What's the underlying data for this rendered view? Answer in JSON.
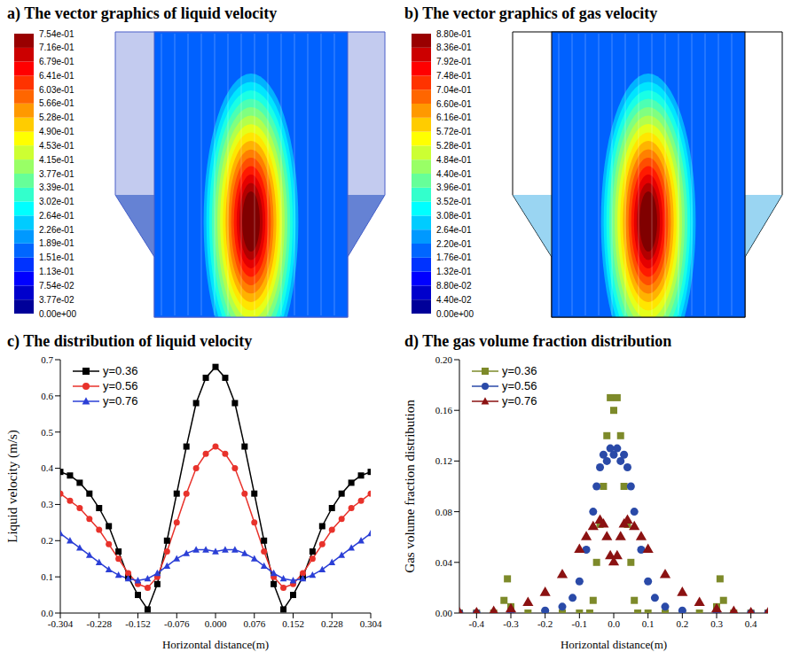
{
  "chart_data": [
    {
      "type": "vector_field",
      "title": "a) The vector graphics of liquid velocity",
      "colorbar": {
        "range": [
          0,
          0.754
        ],
        "ticks": [
          {
            "value": 0,
            "label": "0.00e+00"
          },
          {
            "value": 0.0377,
            "label": "3.77e-02"
          },
          {
            "value": 0.0754,
            "label": "7.54e-02"
          },
          {
            "value": 0.113,
            "label": "1.13e-01"
          },
          {
            "value": 0.151,
            "label": "1.51e-01"
          },
          {
            "value": 0.189,
            "label": "1.89e-01"
          },
          {
            "value": 0.226,
            "label": "2.26e-01"
          },
          {
            "value": 0.264,
            "label": "2.64e-01"
          },
          {
            "value": 0.302,
            "label": "3.02e-01"
          },
          {
            "value": 0.339,
            "label": "3.39e-01"
          },
          {
            "value": 0.377,
            "label": "3.77e-01"
          },
          {
            "value": 0.415,
            "label": "4.15e-01"
          },
          {
            "value": 0.453,
            "label": "4.53e-01"
          },
          {
            "value": 0.49,
            "label": "4.90e-01"
          },
          {
            "value": 0.528,
            "label": "5.28e-01"
          },
          {
            "value": 0.566,
            "label": "5.66e-01"
          },
          {
            "value": 0.603,
            "label": "6.03e-01"
          },
          {
            "value": 0.641,
            "label": "6.41e-01"
          },
          {
            "value": 0.679,
            "label": "6.79e-01"
          },
          {
            "value": 0.716,
            "label": "7.16e-01"
          },
          {
            "value": 0.754,
            "label": "7.54e-01"
          }
        ]
      }
    },
    {
      "type": "vector_field",
      "title": "b) The vector graphics of gas velocity",
      "colorbar": {
        "range": [
          0,
          0.88
        ],
        "ticks": [
          {
            "value": 0,
            "label": "0.00e+00"
          },
          {
            "value": 0.044,
            "label": "4.40e-02"
          },
          {
            "value": 0.088,
            "label": "8.80e-02"
          },
          {
            "value": 0.132,
            "label": "1.32e-01"
          },
          {
            "value": 0.176,
            "label": "1.76e-01"
          },
          {
            "value": 0.22,
            "label": "2.20e-01"
          },
          {
            "value": 0.264,
            "label": "2.64e-01"
          },
          {
            "value": 0.308,
            "label": "3.08e-01"
          },
          {
            "value": 0.352,
            "label": "3.52e-01"
          },
          {
            "value": 0.396,
            "label": "3.96e-01"
          },
          {
            "value": 0.44,
            "label": "4.40e-01"
          },
          {
            "value": 0.484,
            "label": "4.84e-01"
          },
          {
            "value": 0.528,
            "label": "5.28e-01"
          },
          {
            "value": 0.572,
            "label": "5.72e-01"
          },
          {
            "value": 0.616,
            "label": "6.16e-01"
          },
          {
            "value": 0.66,
            "label": "6.60e-01"
          },
          {
            "value": 0.704,
            "label": "7.04e-01"
          },
          {
            "value": 0.748,
            "label": "7.48e-01"
          },
          {
            "value": 0.792,
            "label": "7.92e-01"
          },
          {
            "value": 0.836,
            "label": "8.36e-01"
          },
          {
            "value": 0.88,
            "label": "8.80e-01"
          }
        ]
      }
    },
    {
      "type": "line",
      "title": "c) The distribution of liquid velocity",
      "xlabel": "Horizontal distance(m)",
      "ylabel": "Liquid velocity (m/s)",
      "xlim": [
        -0.304,
        0.304
      ],
      "xticks": [
        -0.304,
        -0.228,
        -0.152,
        -0.076,
        {
          "value": 0,
          "label": "0.000"
        },
        0.076,
        0.152,
        0.228,
        0.304
      ],
      "ylim": [
        0,
        0.7
      ],
      "yticks": [
        {
          "value": 0,
          "label": "0.0"
        },
        0.1,
        0.2,
        0.3,
        0.4,
        0.5,
        0.6,
        0.7
      ],
      "legend": "upper left",
      "x": [
        -0.304,
        -0.285,
        -0.266,
        -0.247,
        -0.228,
        -0.209,
        -0.19,
        -0.171,
        -0.152,
        -0.133,
        -0.114,
        -0.095,
        -0.076,
        -0.057,
        -0.038,
        -0.019,
        0,
        0.019,
        0.038,
        0.057,
        0.076,
        0.095,
        0.114,
        0.133,
        0.152,
        0.171,
        0.19,
        0.209,
        0.228,
        0.247,
        0.266,
        0.285,
        0.304
      ],
      "series": [
        {
          "name": "y=0.36",
          "color": "#000000",
          "marker": "square",
          "values": [
            0.39,
            0.38,
            0.36,
            0.33,
            0.29,
            0.24,
            0.17,
            0.1,
            0.05,
            0.01,
            0.08,
            0.2,
            0.33,
            0.46,
            0.58,
            0.65,
            0.68,
            0.65,
            0.58,
            0.46,
            0.33,
            0.2,
            0.08,
            0.01,
            0.05,
            0.1,
            0.17,
            0.24,
            0.29,
            0.33,
            0.36,
            0.38,
            0.39
          ]
        },
        {
          "name": "y=0.56",
          "color": "#e8322b",
          "marker": "circle",
          "values": [
            0.33,
            0.31,
            0.29,
            0.26,
            0.23,
            0.19,
            0.15,
            0.11,
            0.08,
            0.07,
            0.1,
            0.17,
            0.25,
            0.33,
            0.4,
            0.44,
            0.46,
            0.44,
            0.4,
            0.33,
            0.25,
            0.17,
            0.1,
            0.07,
            0.08,
            0.11,
            0.15,
            0.19,
            0.23,
            0.26,
            0.29,
            0.31,
            0.33
          ]
        },
        {
          "name": "y=0.76",
          "color": "#2b3fd6",
          "marker": "triangle",
          "values": [
            0.22,
            0.2,
            0.18,
            0.16,
            0.14,
            0.12,
            0.105,
            0.095,
            0.09,
            0.095,
            0.11,
            0.13,
            0.15,
            0.165,
            0.175,
            0.175,
            0.17,
            0.175,
            0.175,
            0.165,
            0.15,
            0.13,
            0.11,
            0.095,
            0.09,
            0.095,
            0.105,
            0.12,
            0.14,
            0.16,
            0.18,
            0.2,
            0.22
          ]
        }
      ]
    },
    {
      "type": "scatter",
      "title": "d) The gas volume fraction distribution",
      "xlabel": "Horizontal distance(m)",
      "ylabel": "Gas volume fraction distribution",
      "xlim": [
        -0.45,
        0.45
      ],
      "xticks": [
        -0.4,
        -0.3,
        -0.2,
        -0.1,
        {
          "value": 0,
          "label": "0.0"
        },
        0.1,
        0.2,
        0.3,
        0.4
      ],
      "ylim": [
        0,
        0.2
      ],
      "yticks": [
        {
          "value": 0,
          "label": "0.00"
        },
        {
          "value": 0.04,
          "label": "0.04"
        },
        {
          "value": 0.08,
          "label": "0.08"
        },
        {
          "value": 0.12,
          "label": "0.12"
        },
        {
          "value": 0.16,
          "label": "0.16"
        },
        {
          "value": 0.2,
          "label": "0.20"
        }
      ],
      "legend": "upper left",
      "series": [
        {
          "name": "y=0.36",
          "color": "#7d8a2a",
          "marker": "square",
          "x": [
            -0.45,
            -0.4,
            -0.35,
            -0.32,
            -0.31,
            -0.3,
            -0.25,
            -0.2,
            -0.15,
            -0.1,
            -0.07,
            -0.06,
            -0.05,
            -0.04,
            -0.03,
            -0.02,
            -0.01,
            0,
            0.01,
            0.02,
            0.03,
            0.04,
            0.05,
            0.06,
            0.07,
            0.1,
            0.15,
            0.2,
            0.25,
            0.3,
            0.31,
            0.32,
            0.35,
            0.4,
            0.45
          ],
          "values": [
            0,
            0,
            0,
            0.01,
            0.027,
            0.005,
            0,
            0,
            0,
            0,
            0,
            0.01,
            0.04,
            0.07,
            0.1,
            0.14,
            0.17,
            0.16,
            0.17,
            0.14,
            0.1,
            0.07,
            0.04,
            0.01,
            0,
            0,
            0,
            0,
            0,
            0.005,
            0.027,
            0.01,
            0,
            0,
            0
          ]
        },
        {
          "name": "y=0.56",
          "color": "#2a4aa8",
          "marker": "circle",
          "x": [
            -0.45,
            -0.4,
            -0.3,
            -0.2,
            -0.15,
            -0.12,
            -0.1,
            -0.08,
            -0.06,
            -0.05,
            -0.04,
            -0.03,
            -0.02,
            -0.01,
            0,
            0.01,
            0.02,
            0.03,
            0.04,
            0.05,
            0.06,
            0.08,
            0.1,
            0.12,
            0.15,
            0.2,
            0.3,
            0.4,
            0.45
          ],
          "values": [
            0,
            0,
            0,
            0.002,
            0.005,
            0.012,
            0.025,
            0.05,
            0.08,
            0.1,
            0.115,
            0.125,
            0.12,
            0.13,
            0.125,
            0.13,
            0.12,
            0.125,
            0.115,
            0.1,
            0.08,
            0.05,
            0.025,
            0.012,
            0.005,
            0.002,
            0,
            0,
            0
          ]
        },
        {
          "name": "y=0.76",
          "color": "#8b1212",
          "marker": "triangle",
          "x": [
            -0.45,
            -0.4,
            -0.35,
            -0.3,
            -0.25,
            -0.2,
            -0.15,
            -0.1,
            -0.08,
            -0.06,
            -0.04,
            -0.03,
            -0.02,
            -0.01,
            0,
            0.01,
            0.02,
            0.03,
            0.04,
            0.06,
            0.08,
            0.1,
            0.15,
            0.2,
            0.25,
            0.3,
            0.35,
            0.4,
            0.45
          ],
          "values": [
            0,
            0,
            0.001,
            0.003,
            0.008,
            0.016,
            0.03,
            0.05,
            0.06,
            0.068,
            0.073,
            0.07,
            0.06,
            0.045,
            0.04,
            0.045,
            0.06,
            0.07,
            0.073,
            0.068,
            0.06,
            0.05,
            0.03,
            0.016,
            0.008,
            0.003,
            0.001,
            0,
            0
          ]
        }
      ]
    }
  ]
}
